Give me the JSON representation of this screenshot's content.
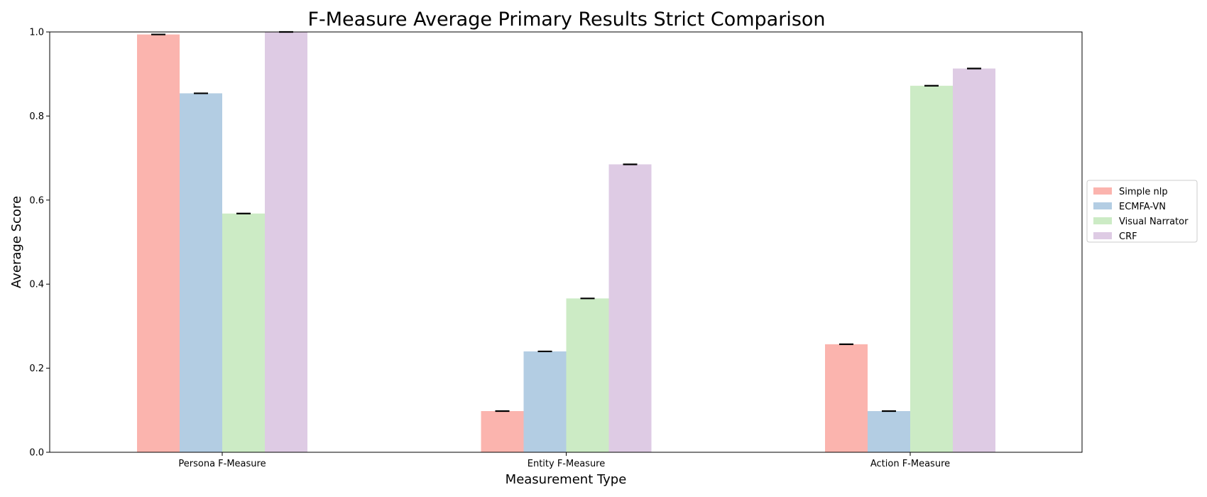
{
  "chart_data": {
    "type": "bar",
    "title": "F-Measure Average Primary Results Strict Comparison",
    "xlabel": "Measurement Type",
    "ylabel": "Average Score",
    "categories": [
      "Persona F-Measure",
      "Entity F-Measure",
      "Action F-Measure"
    ],
    "ylim": [
      0,
      1.0
    ],
    "yticks": [
      "0.0",
      "0.2",
      "0.4",
      "0.6",
      "0.8",
      "1.0"
    ],
    "grid": false,
    "legend_position": "right",
    "error_bars": true,
    "series": [
      {
        "name": "Simple nlp",
        "color": "#fbb4ae",
        "values": [
          0.994,
          0.098,
          0.257
        ]
      },
      {
        "name": "ECMFA-VN",
        "color": "#b3cde3",
        "values": [
          0.854,
          0.24,
          0.098
        ]
      },
      {
        "name": "Visual Narrator",
        "color": "#ccebc5",
        "values": [
          0.568,
          0.366,
          0.872
        ]
      },
      {
        "name": "CRF",
        "color": "#decbe4",
        "values": [
          1.0,
          0.685,
          0.913
        ]
      }
    ]
  }
}
